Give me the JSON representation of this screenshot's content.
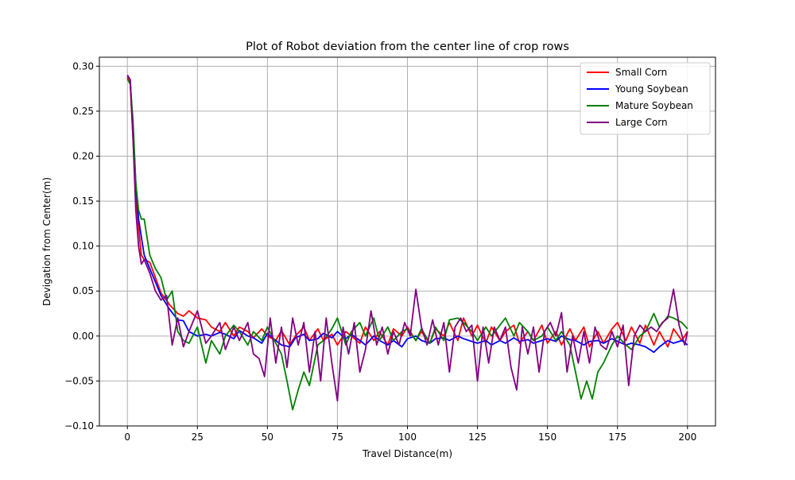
{
  "chart_data": {
    "type": "line",
    "title": "Plot of Robot deviation from the center line of crop rows",
    "xlabel": "Travel Distance(m)",
    "ylabel": "Devigation from Center(m)",
    "xlim": [
      -10,
      210
    ],
    "ylim": [
      -0.1,
      0.31
    ],
    "xticks": [
      0,
      25,
      50,
      75,
      100,
      125,
      150,
      175,
      200
    ],
    "yticks": [
      -0.1,
      -0.05,
      0.0,
      0.05,
      0.1,
      0.15,
      0.2,
      0.25,
      0.3
    ],
    "xtick_labels": [
      "0",
      "25",
      "50",
      "75",
      "100",
      "125",
      "150",
      "175",
      "200"
    ],
    "ytick_labels": [
      "−0.10",
      "−0.05",
      "0.00",
      "0.05",
      "0.10",
      "0.15",
      "0.20",
      "0.25",
      "0.30"
    ],
    "grid": true,
    "legend_position": "top-right",
    "series": [
      {
        "name": "Small Corn",
        "color": "#ff0000",
        "x": [
          0,
          1,
          2,
          3,
          4,
          5,
          6,
          8,
          10,
          12,
          15,
          18,
          20,
          22,
          25,
          28,
          30,
          33,
          35,
          38,
          40,
          43,
          45,
          48,
          50,
          53,
          55,
          58,
          60,
          63,
          65,
          68,
          70,
          73,
          75,
          78,
          80,
          83,
          85,
          88,
          90,
          93,
          95,
          98,
          100,
          103,
          105,
          108,
          110,
          113,
          115,
          118,
          120,
          123,
          125,
          128,
          130,
          133,
          135,
          138,
          140,
          143,
          145,
          148,
          150,
          153,
          155,
          158,
          160,
          163,
          165,
          168,
          170,
          173,
          175,
          178,
          180,
          183,
          185,
          188,
          190,
          193,
          195,
          198,
          200
        ],
        "y": [
          0.288,
          0.28,
          0.22,
          0.16,
          0.12,
          0.09,
          0.085,
          0.082,
          0.065,
          0.048,
          0.035,
          0.025,
          0.022,
          0.028,
          0.02,
          0.018,
          0.01,
          0.005,
          0.015,
          0.0,
          0.01,
          0.005,
          -0.002,
          0.008,
          0.0,
          -0.005,
          0.006,
          -0.01,
          0.0,
          0.01,
          -0.005,
          0.008,
          -0.005,
          0.002,
          -0.01,
          0.005,
          0.0,
          -0.008,
          0.01,
          -0.005,
          0.005,
          -0.01,
          0.008,
          0.0,
          0.01,
          -0.005,
          0.005,
          -0.008,
          0.008,
          0.0,
          0.015,
          -0.005,
          0.02,
          0.0,
          0.012,
          -0.008,
          0.01,
          -0.005,
          0.005,
          0.012,
          -0.008,
          0.005,
          -0.005,
          0.012,
          -0.008,
          0.005,
          -0.01,
          0.008,
          -0.005,
          0.01,
          -0.012,
          0.005,
          -0.008,
          0.008,
          0.015,
          -0.005,
          0.01,
          -0.008,
          0.012,
          -0.01,
          0.005,
          -0.012,
          0.008,
          -0.005,
          0.005
        ]
      },
      {
        "name": "Young Soybean",
        "color": "#0000ff",
        "x": [
          0,
          1,
          2,
          3,
          4,
          5,
          6,
          8,
          10,
          12,
          15,
          18,
          20,
          22,
          25,
          28,
          30,
          33,
          35,
          38,
          40,
          43,
          45,
          48,
          50,
          53,
          55,
          58,
          60,
          63,
          65,
          68,
          70,
          73,
          75,
          78,
          80,
          83,
          85,
          88,
          90,
          93,
          95,
          98,
          100,
          103,
          105,
          108,
          110,
          113,
          115,
          118,
          120,
          123,
          125,
          128,
          130,
          133,
          135,
          138,
          140,
          143,
          145,
          148,
          150,
          153,
          155,
          158,
          160,
          163,
          165,
          168,
          170,
          173,
          175,
          178,
          180,
          183,
          185,
          188,
          190,
          193,
          195,
          198,
          200
        ],
        "y": [
          0.29,
          0.285,
          0.23,
          0.17,
          0.13,
          0.11,
          0.09,
          0.075,
          0.06,
          0.045,
          0.03,
          0.018,
          0.017,
          0.005,
          0.0,
          0.002,
          0.0,
          0.004,
          0.002,
          -0.003,
          0.006,
          0.0,
          -0.002,
          -0.008,
          0.003,
          -0.005,
          -0.01,
          -0.012,
          -0.002,
          0.002,
          -0.005,
          -0.003,
          0.003,
          -0.002,
          0.005,
          -0.003,
          0.002,
          -0.005,
          -0.01,
          0.0,
          -0.005,
          -0.01,
          -0.005,
          -0.012,
          -0.003,
          0.0,
          -0.005,
          -0.008,
          -0.003,
          -0.002,
          -0.005,
          0.0,
          -0.003,
          -0.006,
          -0.008,
          -0.005,
          -0.01,
          -0.005,
          -0.008,
          -0.002,
          -0.006,
          -0.004,
          -0.008,
          -0.005,
          -0.003,
          -0.006,
          0.0,
          -0.004,
          -0.005,
          -0.01,
          -0.006,
          -0.005,
          -0.008,
          -0.003,
          -0.006,
          -0.01,
          -0.008,
          -0.01,
          -0.012,
          -0.018,
          -0.012,
          -0.005,
          -0.008,
          -0.005,
          -0.01
        ]
      },
      {
        "name": "Mature Soybean",
        "color": "#008000",
        "x": [
          0,
          1,
          2,
          3,
          4,
          5,
          6,
          8,
          10,
          12,
          14,
          16,
          18,
          20,
          22,
          25,
          28,
          30,
          33,
          35,
          38,
          40,
          43,
          45,
          48,
          50,
          53,
          55,
          57,
          59,
          61,
          63,
          65,
          68,
          70,
          73,
          75,
          78,
          80,
          83,
          85,
          88,
          90,
          93,
          95,
          98,
          100,
          103,
          105,
          108,
          110,
          113,
          115,
          118,
          120,
          123,
          125,
          128,
          130,
          133,
          135,
          138,
          140,
          143,
          145,
          148,
          150,
          153,
          155,
          158,
          160,
          162,
          164,
          166,
          168,
          170,
          173,
          175,
          178,
          180,
          183,
          185,
          188,
          190,
          193,
          195,
          198,
          200
        ],
        "y": [
          0.286,
          0.28,
          0.24,
          0.17,
          0.14,
          0.13,
          0.13,
          0.09,
          0.075,
          0.065,
          0.04,
          0.05,
          0.005,
          -0.005,
          -0.008,
          0.01,
          -0.03,
          -0.005,
          -0.02,
          0.0,
          0.012,
          0.005,
          -0.01,
          0.005,
          -0.005,
          0.01,
          -0.008,
          -0.02,
          -0.05,
          -0.082,
          -0.06,
          -0.04,
          -0.055,
          -0.01,
          -0.005,
          0.008,
          0.02,
          -0.01,
          0.005,
          0.015,
          0.0,
          0.02,
          -0.005,
          0.01,
          -0.005,
          0.005,
          0.008,
          -0.005,
          0.008,
          -0.008,
          0.01,
          -0.005,
          0.018,
          0.02,
          0.015,
          0.005,
          -0.005,
          0.01,
          0.0,
          0.012,
          0.02,
          0.0,
          0.015,
          0.005,
          -0.005,
          0.0,
          0.01,
          -0.005,
          0.005,
          -0.01,
          -0.04,
          -0.07,
          -0.05,
          -0.07,
          -0.04,
          -0.03,
          -0.01,
          0.0,
          -0.01,
          -0.015,
          0.0,
          0.005,
          0.025,
          0.01,
          0.022,
          0.02,
          0.015,
          0.008
        ]
      },
      {
        "name": "Large Corn",
        "color": "#800080",
        "x": [
          0,
          1,
          2,
          3,
          4,
          5,
          6,
          8,
          10,
          12,
          14,
          16,
          18,
          20,
          22,
          25,
          28,
          30,
          33,
          35,
          38,
          40,
          43,
          45,
          47,
          49,
          51,
          53,
          55,
          57,
          59,
          61,
          63,
          65,
          67,
          69,
          71,
          73,
          75,
          77,
          79,
          81,
          83,
          85,
          87,
          89,
          91,
          93,
          95,
          97,
          99,
          101,
          103,
          105,
          107,
          109,
          111,
          113,
          115,
          117,
          119,
          121,
          123,
          125,
          127,
          129,
          131,
          133,
          135,
          137,
          139,
          141,
          143,
          145,
          147,
          149,
          151,
          153,
          155,
          157,
          159,
          161,
          163,
          165,
          167,
          169,
          171,
          173,
          175,
          177,
          179,
          181,
          183,
          185,
          187,
          189,
          191,
          193,
          195,
          197,
          199,
          200
        ],
        "y": [
          0.29,
          0.285,
          0.22,
          0.14,
          0.1,
          0.08,
          0.085,
          0.07,
          0.05,
          0.04,
          0.045,
          -0.01,
          0.02,
          -0.012,
          0.005,
          0.028,
          -0.008,
          0.0,
          0.015,
          -0.015,
          0.01,
          -0.005,
          0.015,
          -0.02,
          -0.025,
          -0.045,
          0.02,
          -0.03,
          0.01,
          -0.035,
          0.02,
          -0.01,
          0.015,
          -0.04,
          0.005,
          -0.05,
          0.02,
          -0.03,
          -0.072,
          0.01,
          -0.02,
          0.015,
          -0.04,
          -0.015,
          0.028,
          -0.01,
          0.01,
          -0.02,
          0.005,
          -0.01,
          0.015,
          0.0,
          0.052,
          0.01,
          -0.01,
          0.018,
          -0.01,
          0.015,
          -0.04,
          0.01,
          0.02,
          0.005,
          0.012,
          -0.05,
          0.01,
          -0.03,
          0.01,
          -0.005,
          0.01,
          -0.035,
          -0.06,
          0.01,
          -0.02,
          0.01,
          -0.04,
          0.005,
          0.015,
          0.0,
          0.026,
          -0.04,
          0.0,
          -0.03,
          0.005,
          -0.03,
          0.01,
          -0.01,
          -0.015,
          0.005,
          -0.012,
          0.012,
          -0.055,
          0.0,
          0.012,
          0.005,
          0.01,
          0.005,
          0.015,
          0.02,
          0.052,
          0.012,
          -0.01,
          0.005
        ]
      }
    ]
  }
}
